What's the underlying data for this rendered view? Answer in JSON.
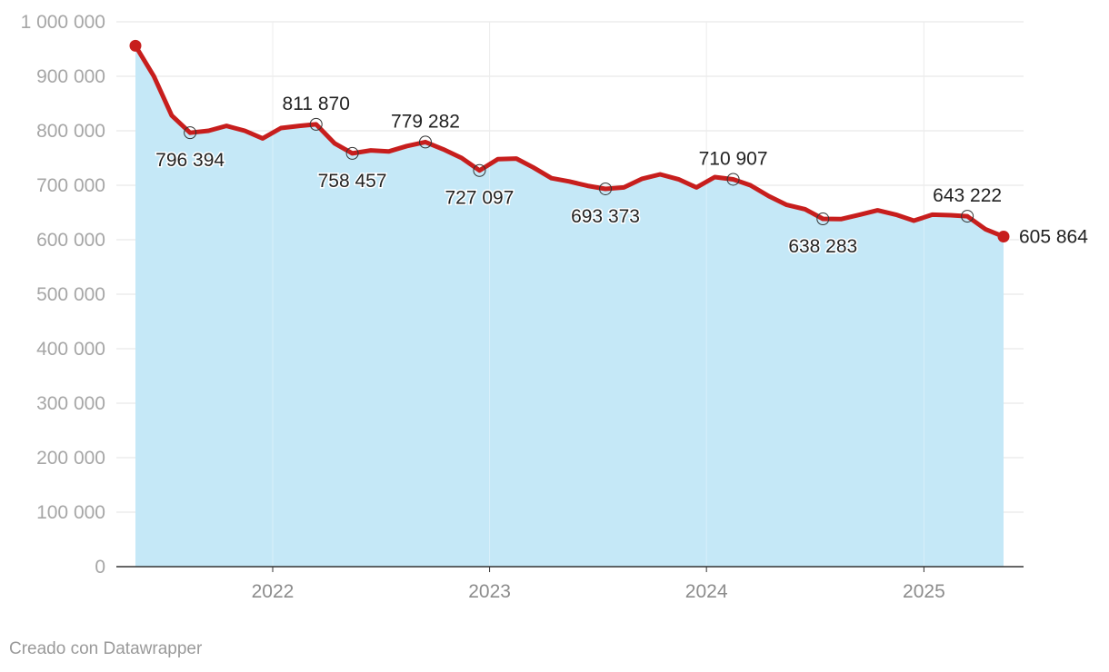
{
  "chart_data": {
    "type": "area",
    "title": "",
    "xlabel": "",
    "ylabel": "",
    "ylim": [
      0,
      1000000
    ],
    "yticks": [
      0,
      100000,
      200000,
      300000,
      400000,
      500000,
      600000,
      700000,
      800000,
      900000,
      1000000
    ],
    "ytick_labels": [
      "0",
      "100 000",
      "200 000",
      "300 000",
      "400 000",
      "500 000",
      "600 000",
      "700 000",
      "800 000",
      "900 000",
      "1 000 000"
    ],
    "xticks": [
      {
        "label": "2022",
        "date": "2022-01-01"
      },
      {
        "label": "2023",
        "date": "2023-01-01"
      },
      {
        "label": "2024",
        "date": "2024-01-01"
      },
      {
        "label": "2025",
        "date": "2025-01-01"
      }
    ],
    "grid": true,
    "colors": {
      "line": "#c71e1d",
      "area": "#c5e8f7",
      "grid": "#e3e3e3",
      "axis": "#333333"
    },
    "series": [
      {
        "x": [
          "2021-05",
          "2021-06",
          "2021-07",
          "2021-08",
          "2021-09",
          "2021-10",
          "2021-11",
          "2021-12",
          "2022-01",
          "2022-02",
          "2022-03",
          "2022-04",
          "2022-05",
          "2022-06",
          "2022-07",
          "2022-08",
          "2022-09",
          "2022-10",
          "2022-11",
          "2022-12",
          "2023-01",
          "2023-02",
          "2023-03",
          "2023-04",
          "2023-05",
          "2023-06",
          "2023-07",
          "2023-08",
          "2023-09",
          "2023-10",
          "2023-11",
          "2023-12",
          "2024-01",
          "2024-02",
          "2024-03",
          "2024-04",
          "2024-05",
          "2024-06",
          "2024-07",
          "2024-08",
          "2024-09",
          "2024-10",
          "2024-11",
          "2024-12",
          "2025-01",
          "2025-02",
          "2025-03",
          "2025-04",
          "2025-05"
        ],
        "values": [
          956000,
          900000,
          828000,
          796394,
          800000,
          809000,
          800000,
          786000,
          805000,
          809000,
          811870,
          777000,
          758457,
          764000,
          762000,
          772000,
          779282,
          766000,
          750000,
          727097,
          748000,
          749000,
          733000,
          713000,
          707000,
          699000,
          693373,
          696000,
          712000,
          720000,
          711000,
          696000,
          715000,
          710907,
          700000,
          680000,
          664000,
          656000,
          638283,
          638000,
          646000,
          654000,
          646000,
          635000,
          646000,
          645000,
          643222,
          619000,
          605864
        ]
      }
    ],
    "annotations": [
      {
        "label": "796 394",
        "date": "2021-08",
        "value": 796394,
        "position": "below"
      },
      {
        "label": "811 870",
        "date": "2022-03",
        "value": 811870,
        "position": "above"
      },
      {
        "label": "758 457",
        "date": "2022-05",
        "value": 758457,
        "position": "below"
      },
      {
        "label": "779 282",
        "date": "2022-09",
        "value": 779282,
        "position": "above"
      },
      {
        "label": "727 097",
        "date": "2022-12",
        "value": 727097,
        "position": "below"
      },
      {
        "label": "693 373",
        "date": "2023-07",
        "value": 693373,
        "position": "below"
      },
      {
        "label": "710 907",
        "date": "2024-02",
        "value": 710907,
        "position": "above"
      },
      {
        "label": "638 283",
        "date": "2024-07",
        "value": 638283,
        "position": "below"
      },
      {
        "label": "643 222",
        "date": "2025-03",
        "value": 643222,
        "position": "above"
      },
      {
        "label": "605 864",
        "date": "2025-05",
        "value": 605864,
        "position": "right"
      }
    ]
  },
  "footer": {
    "credit": "Creado con Datawrapper"
  }
}
